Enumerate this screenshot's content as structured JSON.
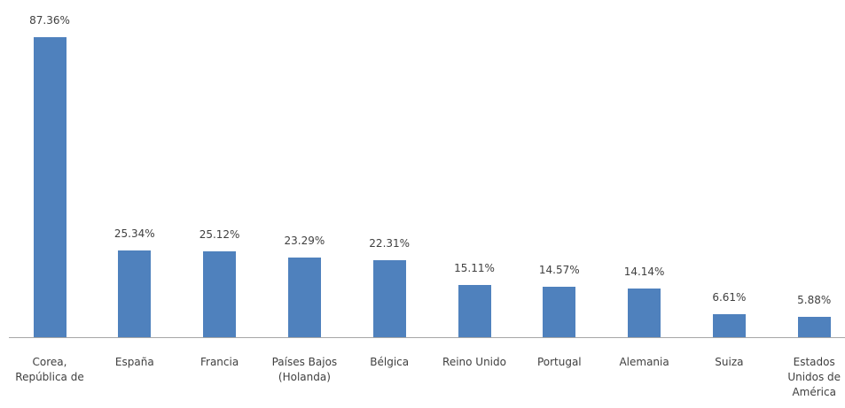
{
  "chart_data": {
    "type": "bar",
    "categories": [
      "Corea, República de",
      "España",
      "Francia",
      "Países Bajos (Holanda)",
      "Bélgica",
      "Reino Unido",
      "Portugal",
      "Alemania",
      "Suiza",
      "Estados Unidos de América"
    ],
    "values": [
      87.36,
      25.34,
      25.12,
      23.29,
      22.31,
      15.11,
      14.57,
      14.14,
      6.61,
      5.88
    ],
    "value_labels": [
      "87.36%",
      "25.34%",
      "25.12%",
      "23.29%",
      "22.31%",
      "15.11%",
      "14.57%",
      "14.14%",
      "6.61%",
      "5.88%"
    ],
    "color": "#4f81bd"
  }
}
